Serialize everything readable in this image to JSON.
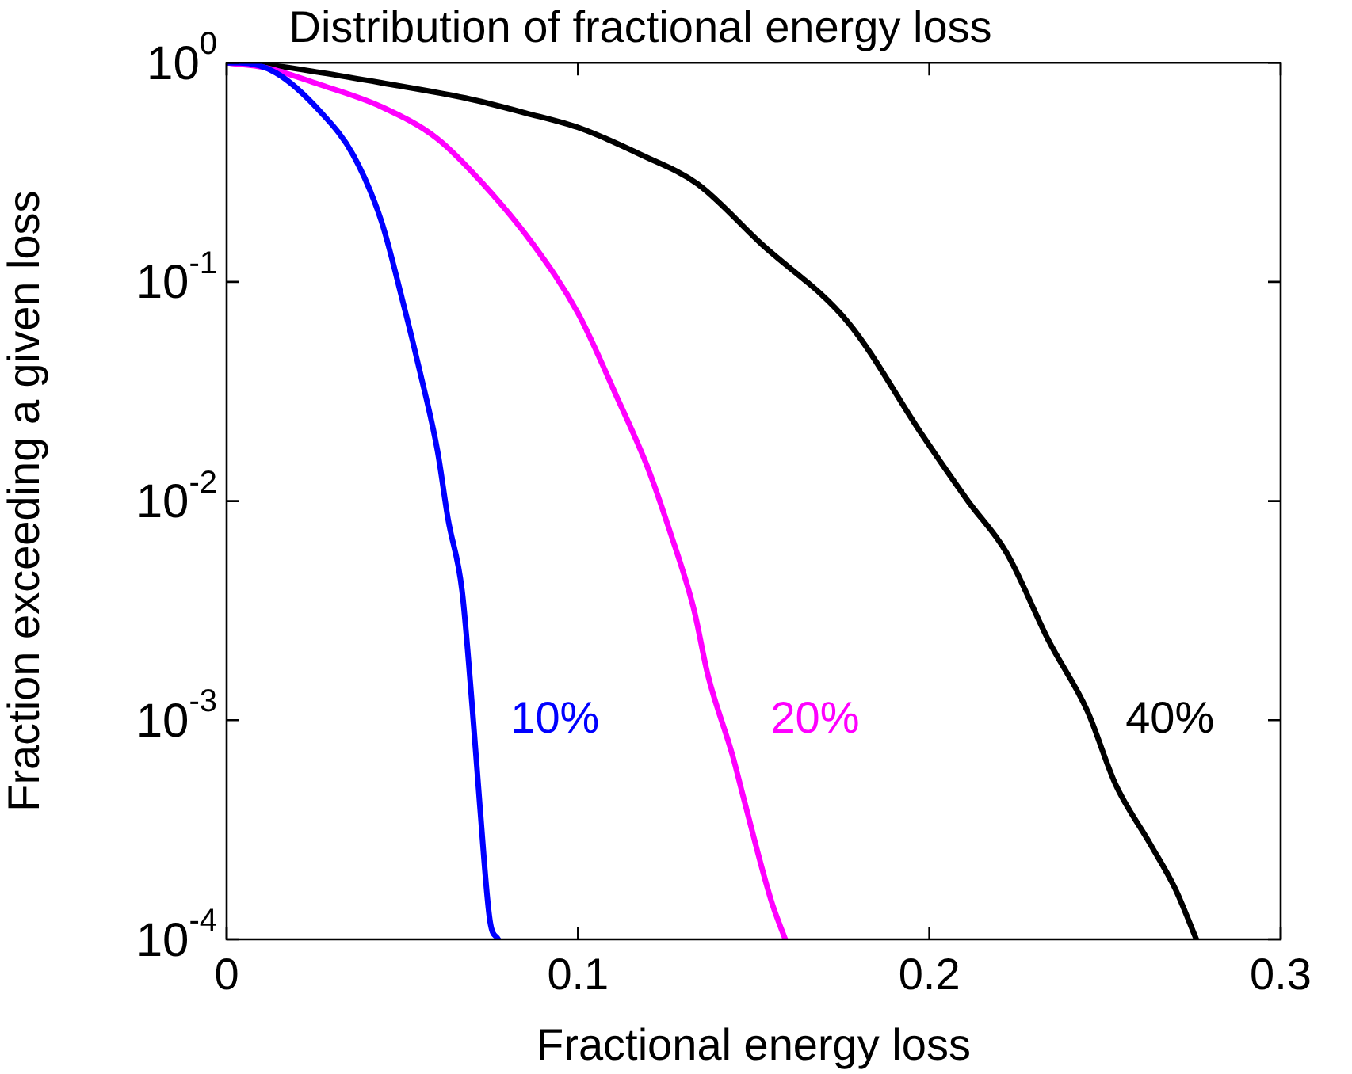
{
  "chart_data": {
    "type": "line",
    "title": "Distribution of fractional energy loss",
    "xlabel": "Fractional energy loss",
    "ylabel": "Fraction exceeding a given loss",
    "log": "y",
    "grid": false,
    "marker": "none",
    "line_style": "solid",
    "xlim": [
      0,
      0.3
    ],
    "xticks": [
      0,
      0.1,
      0.2,
      0.3
    ],
    "ylim": [
      0.0001,
      1
    ],
    "yticks": [
      {
        "value": 1,
        "label": "10$^{0}$"
      },
      {
        "value": 0.1,
        "label": "10$^{-1}$"
      },
      {
        "value": 0.01,
        "label": "10$^{-2}$"
      },
      {
        "value": 0.001,
        "label": "10$^{-3}$"
      },
      {
        "value": 0.0001,
        "label": "10$^{-4}$"
      }
    ],
    "series": [
      {
        "name": "10%",
        "color": "#0000ff",
        "x": [
          0,
          0.0036,
          0.014,
          0.027,
          0.036,
          0.044,
          0.05,
          0.055,
          0.06,
          0.063,
          0.067,
          0.07,
          0.072,
          0.075,
          0.0773
        ],
        "values": [
          1,
          1,
          0.9,
          0.59,
          0.38,
          0.19,
          0.083,
          0.039,
          0.017,
          0.0083,
          0.0039,
          0.0011,
          0.00042,
          0.00012,
          0.0001
        ]
      },
      {
        "name": "20%",
        "color": "#ff00ff",
        "x": [
          0,
          0.011,
          0.027,
          0.044,
          0.06,
          0.073,
          0.087,
          0.1,
          0.111,
          0.12,
          0.126,
          0.133,
          0.137,
          0.144,
          0.147,
          0.155,
          0.159
        ],
        "values": [
          1,
          0.95,
          0.79,
          0.63,
          0.45,
          0.28,
          0.15,
          0.072,
          0.03,
          0.014,
          0.0074,
          0.0032,
          0.0016,
          0.00069,
          0.00045,
          0.00015,
          0.0001
        ]
      },
      {
        "name": "40%",
        "color": "#000000",
        "x": [
          0,
          0.011,
          0.027,
          0.044,
          0.068,
          0.085,
          0.101,
          0.118,
          0.134,
          0.152,
          0.177,
          0.198,
          0.211,
          0.222,
          0.234,
          0.245,
          0.253,
          0.263,
          0.27,
          0.276
        ],
        "values": [
          1,
          0.98,
          0.9,
          0.81,
          0.69,
          0.59,
          0.5,
          0.38,
          0.28,
          0.15,
          0.065,
          0.02,
          0.01,
          0.0058,
          0.0023,
          0.0011,
          0.00051,
          0.00027,
          0.00017,
          0.0001
        ]
      }
    ]
  }
}
